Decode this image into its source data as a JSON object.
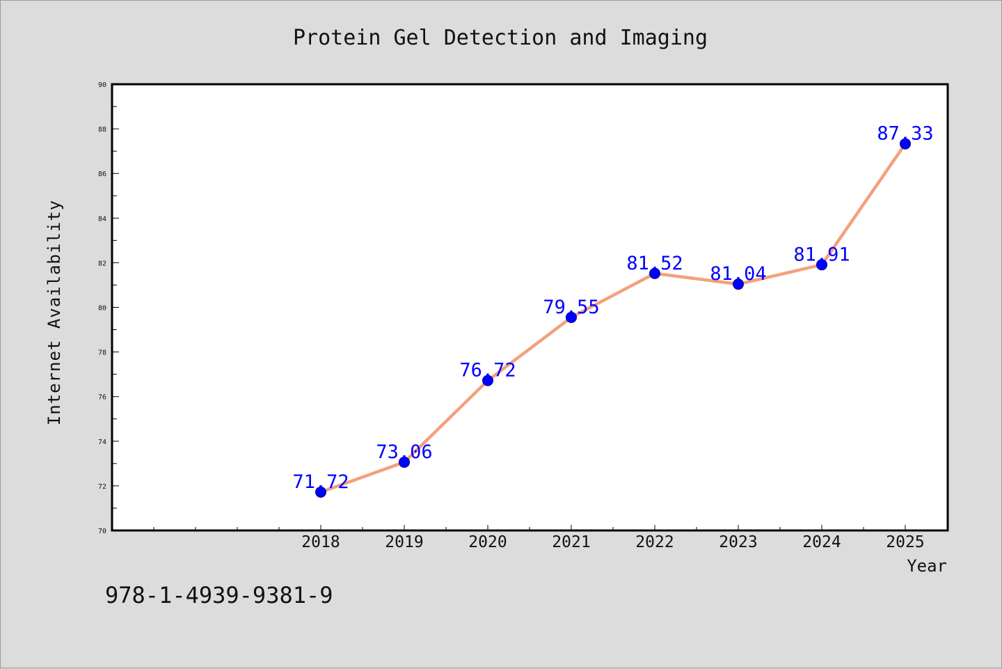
{
  "chart_data": {
    "type": "line",
    "title": "Protein Gel Detection and Imaging",
    "xlabel": "Year",
    "ylabel": "Internet Availability",
    "x": [
      "2018",
      "2019",
      "2020",
      "2021",
      "2022",
      "2023",
      "2024",
      "2025"
    ],
    "series": [
      {
        "values": [
          71.72,
          73.06,
          76.72,
          79.55,
          81.52,
          81.04,
          81.91,
          87.33
        ],
        "data_labels": [
          "71.72",
          "73.06",
          "76.72",
          "79.55",
          "81.52",
          "81.04",
          "81.91",
          "87.33"
        ],
        "line_color": "#f4a07e",
        "marker_color": "#0000ff"
      }
    ],
    "ylim": [
      70,
      90
    ],
    "yticks": [
      "70",
      "72",
      "74",
      "76",
      "78",
      "80",
      "82",
      "84",
      "86",
      "88",
      "90"
    ],
    "grid": false,
    "legend": "none"
  },
  "footnote": "978-1-4939-9381-9",
  "colors": {
    "background": "#dcdcdc",
    "plot_background": "#ffffff",
    "axis": "#000000",
    "label_text": "#0000ff"
  }
}
